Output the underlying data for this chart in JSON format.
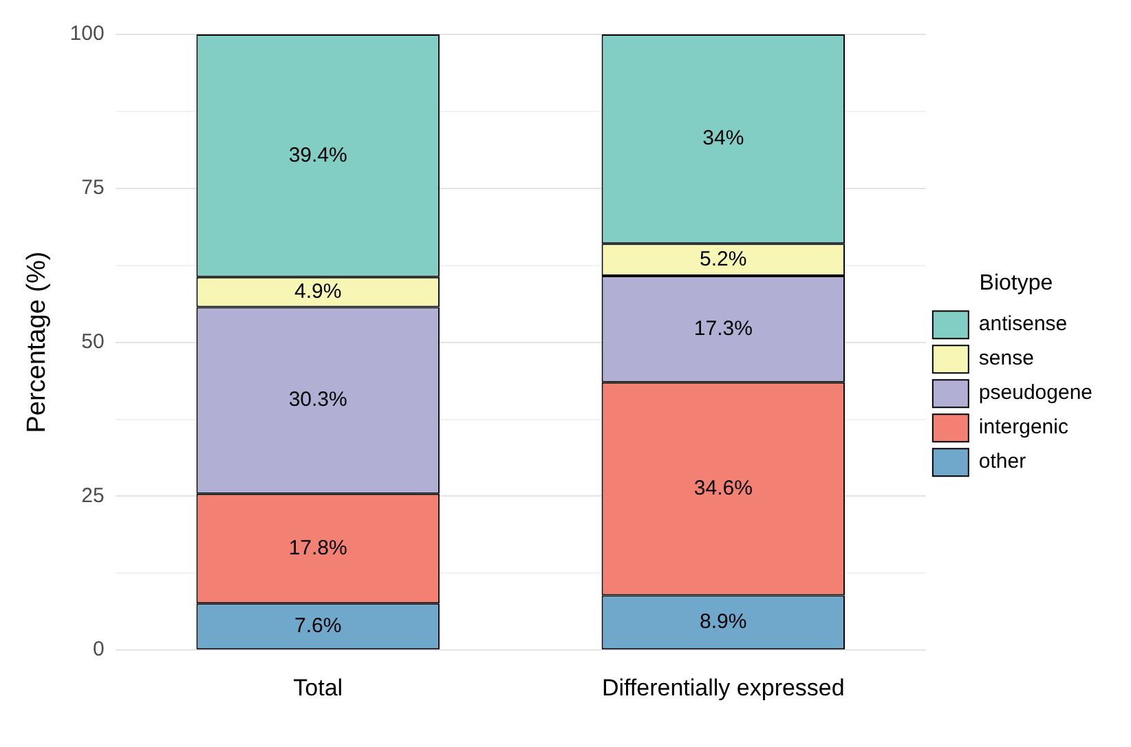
{
  "chart_data": {
    "type": "bar",
    "stacked": true,
    "ylabel": "Percentage (%)",
    "legend_title": "Biotype",
    "legend": "right",
    "grid": "y",
    "categories": [
      "Total",
      "Differentially expressed"
    ],
    "ylim": [
      0,
      100
    ],
    "yticks": [
      0,
      {
        "value": 12.5,
        "label": null
      },
      25,
      {
        "value": 37.5,
        "label": null
      },
      50,
      {
        "value": 62.5,
        "label": null
      },
      75,
      {
        "value": 87.5,
        "label": null
      },
      100
    ],
    "series": [
      {
        "name": "other",
        "color": "#6fa8cb",
        "values": [
          7.6,
          8.9
        ],
        "value_labels": [
          "7.6%",
          "8.9%"
        ]
      },
      {
        "name": "intergenic",
        "color": "#f28073",
        "values": [
          17.8,
          34.6
        ],
        "value_labels": [
          "17.8%",
          "34.6%"
        ]
      },
      {
        "name": "pseudogene",
        "color": "#b1afd4",
        "values": [
          30.3,
          17.3
        ],
        "value_labels": [
          "30.3%",
          "17.3%"
        ]
      },
      {
        "name": "sense",
        "color": "#f7f6b4",
        "values": [
          4.9,
          5.2
        ],
        "value_labels": [
          "4.9%",
          "5.2%"
        ]
      },
      {
        "name": "antisense",
        "color": "#82cdc4",
        "values": [
          39.4,
          34
        ],
        "value_labels": [
          "39.4%",
          "34%"
        ]
      }
    ]
  }
}
